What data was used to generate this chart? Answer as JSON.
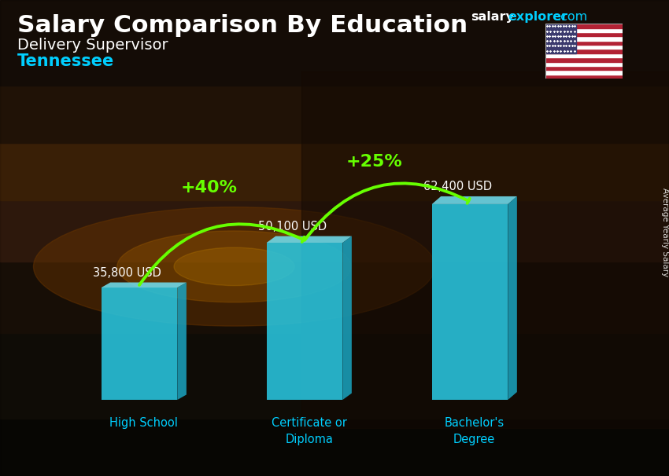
{
  "title_main": "Salary Comparison By Education",
  "title_sub": "Delivery Supervisor",
  "title_location": "Tennessee",
  "categories": [
    "High School",
    "Certificate or\nDiploma",
    "Bachelor's\nDegree"
  ],
  "values": [
    35800,
    50100,
    62400
  ],
  "value_labels": [
    "35,800 USD",
    "50,100 USD",
    "62,400 USD"
  ],
  "bar_color_face": "#29C6E0",
  "bar_color_top": "#6FDDEE",
  "bar_color_right": "#1AA0BB",
  "pct_labels": [
    "+40%",
    "+25%"
  ],
  "text_color_white": "#FFFFFF",
  "text_color_cyan": "#00CFFF",
  "text_color_green": "#66FF00",
  "ylabel_text": "Average Yearly Salary",
  "brand_salary": "salary",
  "brand_explorer": "explorer",
  "brand_com": ".com",
  "bg_colors": [
    "#1a1008",
    "#2e1a08",
    "#4a2810",
    "#5c3215",
    "#3a2010",
    "#1e1008",
    "#0a0805"
  ],
  "bg_stops": [
    0.0,
    0.15,
    0.35,
    0.5,
    0.65,
    0.8,
    1.0
  ]
}
